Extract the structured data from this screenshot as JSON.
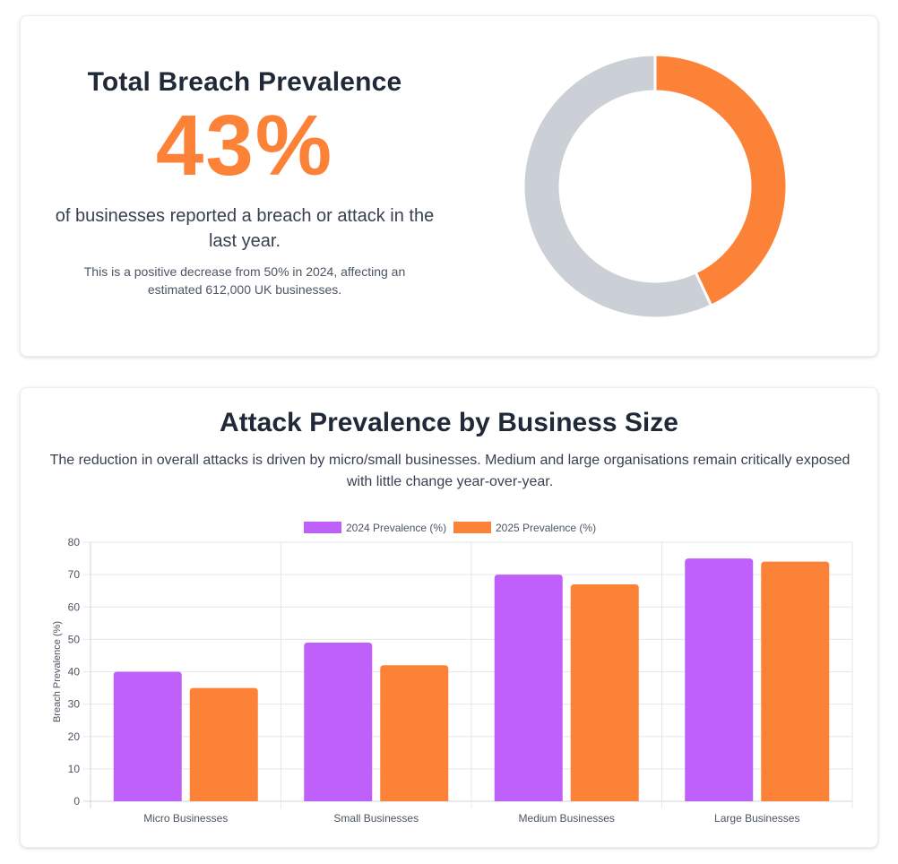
{
  "colors": {
    "accent_orange": "#fb8236",
    "purple": "#bf60fb",
    "donut_remainder": "#cbd0d6",
    "grid": "#e5e7eb"
  },
  "summary": {
    "title": "Total Breach Prevalence",
    "value": "43%",
    "description": "of businesses reported a breach or attack in the last year.",
    "note": "This is a positive decrease from 50% in 2024, affecting an estimated 612,000 UK businesses."
  },
  "section": {
    "title": "Attack Prevalence by Business Size",
    "description": "The reduction in overall attacks is driven by micro/small businesses. Medium and large organisations remain critically exposed with little change year-over-year."
  },
  "chart_data": [
    {
      "type": "pie",
      "variant": "doughnut",
      "values": [
        43,
        57
      ],
      "colors": [
        "#fb8236",
        "#cbd0d6"
      ]
    },
    {
      "type": "bar",
      "categories": [
        "Micro Businesses",
        "Small Businesses",
        "Medium Businesses",
        "Large Businesses"
      ],
      "series": [
        {
          "name": "2024 Prevalence (%)",
          "values": [
            40,
            49,
            70,
            75
          ],
          "color": "#bf60fb"
        },
        {
          "name": "2025 Prevalence (%)",
          "values": [
            35,
            42,
            67,
            74
          ],
          "color": "#fb8236"
        }
      ],
      "ylabel": "Breach Prevalence (%)",
      "xlabel": "",
      "ylim": [
        0,
        80
      ],
      "yticks": [
        0,
        10,
        20,
        30,
        40,
        50,
        60,
        70,
        80
      ],
      "grid": true,
      "legend": "top-center"
    }
  ]
}
